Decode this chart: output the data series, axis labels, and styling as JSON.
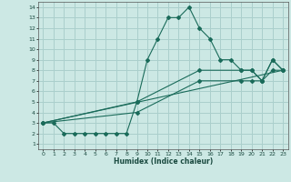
{
  "title": "",
  "xlabel": "Humidex (Indice chaleur)",
  "ylabel": "",
  "xlim": [
    -0.5,
    23.5
  ],
  "ylim": [
    0.5,
    14.5
  ],
  "xticks": [
    0,
    1,
    2,
    3,
    4,
    5,
    6,
    7,
    8,
    9,
    10,
    11,
    12,
    13,
    14,
    15,
    16,
    17,
    18,
    19,
    20,
    21,
    22,
    23
  ],
  "yticks": [
    1,
    2,
    3,
    4,
    5,
    6,
    7,
    8,
    9,
    10,
    11,
    12,
    13,
    14
  ],
  "bg_color": "#cce8e4",
  "grid_color": "#aacfcc",
  "line_color": "#1a6b5a",
  "line1_x": [
    0,
    1,
    2,
    3,
    4,
    5,
    6,
    7,
    8,
    9,
    10,
    11,
    12,
    13,
    14,
    15,
    16,
    17,
    18,
    19,
    20,
    21,
    22,
    23
  ],
  "line1_y": [
    3,
    3,
    2,
    2,
    2,
    2,
    2,
    2,
    2,
    5,
    9,
    11,
    13,
    13,
    14,
    12,
    11,
    9,
    9,
    8,
    8,
    7,
    9,
    8
  ],
  "line2_x": [
    0,
    9,
    15,
    19,
    20,
    21,
    22,
    23
  ],
  "line2_y": [
    3,
    5,
    8,
    8,
    8,
    7,
    9,
    8
  ],
  "line3_x": [
    0,
    9,
    15,
    19,
    20,
    21,
    22,
    23
  ],
  "line3_y": [
    3,
    4,
    7,
    7,
    7,
    7,
    8,
    8
  ],
  "line4_x": [
    0,
    23
  ],
  "line4_y": [
    3,
    8
  ]
}
